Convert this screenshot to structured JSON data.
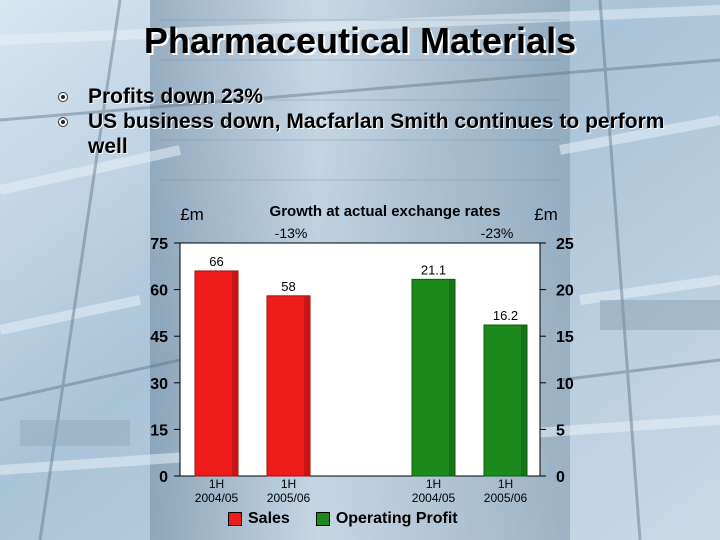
{
  "slide": {
    "title": "Pharmaceutical Materials",
    "bullets": [
      "Profits down 23%",
      "US business down, Macfarlan Smith continues to perform well"
    ]
  },
  "colors": {
    "sales": "#ee1b1b",
    "operating_profit": "#1d8a1d"
  },
  "chart_data": {
    "type": "bar",
    "subtitle": "Growth at actual exchange rates",
    "left_axis": {
      "unit": "£m",
      "range": [
        0,
        75
      ],
      "ticks": [
        0,
        15,
        30,
        45,
        60,
        75
      ]
    },
    "right_axis": {
      "unit": "£m",
      "range": [
        0,
        25
      ],
      "ticks": [
        0,
        5,
        10,
        15,
        20,
        25
      ]
    },
    "series": [
      {
        "name": "Sales",
        "axis": "left",
        "categories": [
          "1H 2004/05",
          "1H 2005/06"
        ],
        "values": [
          66,
          58
        ],
        "value_labels": [
          "66",
          "58"
        ],
        "growth": "-13%"
      },
      {
        "name": "Operating Profit",
        "axis": "right",
        "categories": [
          "1H 2004/05",
          "1H 2005/06"
        ],
        "values": [
          21.1,
          16.2
        ],
        "value_labels": [
          "21.1",
          "16.2"
        ],
        "growth": "-23%"
      }
    ],
    "grid": false,
    "legend": "bottom"
  }
}
